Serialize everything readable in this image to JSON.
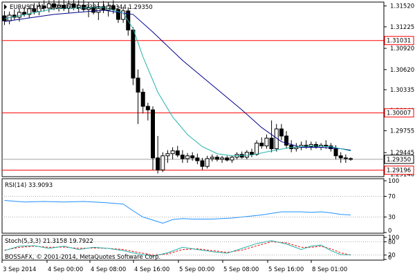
{
  "header": {
    "symbol": "EURUSD,H1",
    "ohlc": "1.29367 1.29381 1.29344 1.29350"
  },
  "colors": {
    "background": "#ffffff",
    "frame": "#000000",
    "candle": "#000000",
    "ma_fast": "#20b2aa",
    "ma_slow": "#00008b",
    "hline": "#ff0000",
    "price_line": "#a0a0a0",
    "rsi": "#1e90ff",
    "stoch_main": "#20b2aa",
    "stoch_signal": "#ff0000",
    "dotted_level": "#a9a9a9"
  },
  "chart_data": {
    "type": "candlestick",
    "symbol": "EURUSD",
    "timeframe": "H1",
    "ylim": [
      1.29105,
      1.31575
    ],
    "price_ticks": [
      "1.31520",
      "1.31225",
      "1.30920",
      "1.30620",
      "1.30335",
      "1.30040",
      "1.29755",
      "1.29445",
      "1.29140"
    ],
    "price_labels": [
      {
        "label": "1.31031",
        "value": 1.31031,
        "kind": "level",
        "color": "#ff0000"
      },
      {
        "label": "1.30007",
        "value": 1.30007,
        "kind": "level",
        "color": "#ff0000"
      },
      {
        "label": "1.29350",
        "value": 1.2935,
        "kind": "current",
        "color": "#ffffff"
      },
      {
        "label": "1.29196",
        "value": 1.29196,
        "kind": "level",
        "color": "#ff0000"
      }
    ],
    "x_labels": [
      "3 Sep 2014",
      "4 Sep 00:00",
      "4 Sep 08:00",
      "4 Sep 16:00",
      "5 Sep 00:00",
      "5 Sep 08:00",
      "5 Sep 16:00",
      "8 Sep 01:00"
    ],
    "candles": [
      [
        1.3138,
        1.3145,
        1.3125,
        1.3131
      ],
      [
        1.3131,
        1.3144,
        1.3126,
        1.3139
      ],
      [
        1.3139,
        1.3147,
        1.3132,
        1.3136
      ],
      [
        1.3136,
        1.3149,
        1.313,
        1.3143
      ],
      [
        1.3143,
        1.3151,
        1.3137,
        1.314
      ],
      [
        1.314,
        1.3153,
        1.3135,
        1.3148
      ],
      [
        1.3148,
        1.3156,
        1.314,
        1.3144
      ],
      [
        1.3144,
        1.3158,
        1.3139,
        1.3152
      ],
      [
        1.3152,
        1.316,
        1.3144,
        1.3149
      ],
      [
        1.3149,
        1.316,
        1.3143,
        1.3155
      ],
      [
        1.3155,
        1.3162,
        1.3146,
        1.315
      ],
      [
        1.315,
        1.316,
        1.3144,
        1.3153
      ],
      [
        1.3153,
        1.3163,
        1.3145,
        1.3149
      ],
      [
        1.3149,
        1.316,
        1.3142,
        1.3155
      ],
      [
        1.3155,
        1.3163,
        1.3146,
        1.315
      ],
      [
        1.315,
        1.316,
        1.3143,
        1.3153
      ],
      [
        1.3153,
        1.3161,
        1.3144,
        1.3147
      ],
      [
        1.3147,
        1.3158,
        1.3136,
        1.315
      ],
      [
        1.315,
        1.3158,
        1.314,
        1.3143
      ],
      [
        1.3143,
        1.3157,
        1.3132,
        1.3151
      ],
      [
        1.3151,
        1.3159,
        1.3142,
        1.3146
      ],
      [
        1.3146,
        1.3158,
        1.3137,
        1.3152
      ],
      [
        1.3152,
        1.316,
        1.3141,
        1.3147
      ],
      [
        1.3147,
        1.3152,
        1.3128,
        1.3133
      ],
      [
        1.3133,
        1.315,
        1.3128,
        1.3145
      ],
      [
        1.3145,
        1.315,
        1.311,
        1.3118
      ],
      [
        1.3118,
        1.3122,
        1.304,
        1.305
      ],
      [
        1.305,
        1.3062,
        1.2985,
        1.303
      ],
      [
        1.303,
        1.3035,
        1.3,
        1.301
      ],
      [
        1.301,
        1.3015,
        1.299,
        1.3005
      ],
      [
        1.3005,
        1.301,
        1.292,
        1.2937
      ],
      [
        1.2937,
        1.2968,
        1.2915,
        1.292
      ],
      [
        1.292,
        1.2945,
        1.2917,
        1.294
      ],
      [
        1.294,
        1.2948,
        1.293,
        1.2943
      ],
      [
        1.2943,
        1.2952,
        1.2935,
        1.2947
      ],
      [
        1.2947,
        1.2954,
        1.2938,
        1.2941
      ],
      [
        1.2941,
        1.2948,
        1.293,
        1.2936
      ],
      [
        1.2936,
        1.2944,
        1.293,
        1.294
      ],
      [
        1.294,
        1.2945,
        1.2933,
        1.2937
      ],
      [
        1.2937,
        1.2943,
        1.2928,
        1.2933
      ],
      [
        1.2933,
        1.2937,
        1.292,
        1.2925
      ],
      [
        1.2925,
        1.294,
        1.2922,
        1.2936
      ],
      [
        1.2936,
        1.2942,
        1.2932,
        1.2938
      ],
      [
        1.2938,
        1.2941,
        1.2932,
        1.2935
      ],
      [
        1.2935,
        1.294,
        1.293,
        1.2937
      ],
      [
        1.2937,
        1.294,
        1.2932,
        1.2934
      ],
      [
        1.2934,
        1.294,
        1.293,
        1.2938
      ],
      [
        1.2938,
        1.2945,
        1.2935,
        1.2942
      ],
      [
        1.2942,
        1.2946,
        1.2936,
        1.2938
      ],
      [
        1.2938,
        1.2948,
        1.2935,
        1.2945
      ],
      [
        1.2945,
        1.295,
        1.2938,
        1.2942
      ],
      [
        1.2942,
        1.2962,
        1.294,
        1.2958
      ],
      [
        1.2958,
        1.2966,
        1.295,
        1.2954
      ],
      [
        1.2954,
        1.297,
        1.295,
        1.2965
      ],
      [
        1.2965,
        1.299,
        1.2945,
        1.295
      ],
      [
        1.295,
        1.2985,
        1.2946,
        1.2978
      ],
      [
        1.2978,
        1.2985,
        1.2962,
        1.2968
      ],
      [
        1.2968,
        1.2975,
        1.295,
        1.2955
      ],
      [
        1.2955,
        1.2962,
        1.2945,
        1.295
      ],
      [
        1.295,
        1.2958,
        1.2946,
        1.2952
      ],
      [
        1.2952,
        1.296,
        1.2948,
        1.2955
      ],
      [
        1.2955,
        1.2962,
        1.295,
        1.2953
      ],
      [
        1.2953,
        1.296,
        1.2948,
        1.2956
      ],
      [
        1.2956,
        1.296,
        1.295,
        1.2952
      ],
      [
        1.2952,
        1.2958,
        1.2948,
        1.2955
      ],
      [
        1.2955,
        1.2962,
        1.295,
        1.2954
      ],
      [
        1.2954,
        1.2958,
        1.2946,
        1.295
      ],
      [
        1.295,
        1.2955,
        1.2935,
        1.294
      ],
      [
        1.294,
        1.2945,
        1.293,
        1.2937
      ],
      [
        1.2937,
        1.2942,
        1.293,
        1.2936
      ],
      [
        1.2936,
        1.2938,
        1.2933,
        1.2935
      ]
    ],
    "ma_fast": [
      [
        0,
        1.3134
      ],
      [
        10,
        1.3148
      ],
      [
        20,
        1.315
      ],
      [
        24,
        1.3142
      ],
      [
        26,
        1.312
      ],
      [
        28,
        1.308
      ],
      [
        31,
        1.303
      ],
      [
        34,
        1.2995
      ],
      [
        37,
        1.297
      ],
      [
        40,
        1.2953
      ],
      [
        43,
        1.2943
      ],
      [
        46,
        1.294
      ],
      [
        50,
        1.2941
      ],
      [
        54,
        1.2947
      ],
      [
        58,
        1.2952
      ],
      [
        62,
        1.2954
      ],
      [
        66,
        1.2953
      ],
      [
        70,
        1.2947
      ]
    ],
    "ma_slow": [
      [
        0,
        1.313
      ],
      [
        10,
        1.314
      ],
      [
        20,
        1.3146
      ],
      [
        26,
        1.314
      ],
      [
        30,
        1.3115
      ],
      [
        36,
        1.3075
      ],
      [
        42,
        1.304
      ],
      [
        48,
        1.3005
      ],
      [
        52,
        1.298
      ],
      [
        56,
        1.296
      ],
      [
        60,
        1.2952
      ],
      [
        64,
        1.2952
      ],
      [
        68,
        1.295
      ],
      [
        70,
        1.2948
      ]
    ],
    "horizontal_levels": [
      1.31031,
      1.30007,
      1.29196
    ],
    "current_price": 1.2935,
    "rsi": {
      "label": "RSI(14) 33.9093",
      "ylim": [
        0,
        100
      ],
      "ticks": [
        "100",
        "70",
        "30",
        "0"
      ],
      "levels": [
        70,
        30
      ],
      "values": [
        [
          0,
          62
        ],
        [
          4,
          59
        ],
        [
          8,
          60
        ],
        [
          12,
          59
        ],
        [
          16,
          60
        ],
        [
          20,
          58
        ],
        [
          24,
          55
        ],
        [
          26,
          42
        ],
        [
          28,
          30
        ],
        [
          30,
          24
        ],
        [
          32,
          18
        ],
        [
          34,
          25
        ],
        [
          36,
          27
        ],
        [
          38,
          26
        ],
        [
          40,
          26
        ],
        [
          42,
          26
        ],
        [
          44,
          27
        ],
        [
          46,
          28
        ],
        [
          48,
          30
        ],
        [
          50,
          32
        ],
        [
          52,
          34
        ],
        [
          54,
          37
        ],
        [
          56,
          40
        ],
        [
          58,
          40
        ],
        [
          60,
          40
        ],
        [
          62,
          39
        ],
        [
          64,
          40
        ],
        [
          66,
          38
        ],
        [
          68,
          35
        ],
        [
          70,
          34
        ]
      ]
    },
    "stoch": {
      "label": "Stoch(5,3,3) 21.3158 19.7922",
      "ylim": [
        0,
        100
      ],
      "ticks": [
        "100",
        "80",
        "20",
        "0"
      ],
      "levels": [
        80,
        20
      ],
      "main": [
        [
          0,
          40
        ],
        [
          3,
          60
        ],
        [
          6,
          62
        ],
        [
          9,
          50
        ],
        [
          12,
          60
        ],
        [
          15,
          45
        ],
        [
          18,
          55
        ],
        [
          21,
          50
        ],
        [
          24,
          40
        ],
        [
          27,
          25
        ],
        [
          30,
          15
        ],
        [
          33,
          30
        ],
        [
          36,
          55
        ],
        [
          39,
          45
        ],
        [
          42,
          35
        ],
        [
          45,
          28
        ],
        [
          48,
          50
        ],
        [
          51,
          72
        ],
        [
          54,
          85
        ],
        [
          57,
          70
        ],
        [
          60,
          45
        ],
        [
          62,
          60
        ],
        [
          64,
          65
        ],
        [
          66,
          40
        ],
        [
          68,
          22
        ],
        [
          70,
          21
        ]
      ],
      "signal": [
        [
          0,
          42
        ],
        [
          3,
          55
        ],
        [
          6,
          60
        ],
        [
          9,
          55
        ],
        [
          12,
          56
        ],
        [
          15,
          50
        ],
        [
          18,
          52
        ],
        [
          21,
          50
        ],
        [
          24,
          45
        ],
        [
          27,
          32
        ],
        [
          30,
          20
        ],
        [
          33,
          25
        ],
        [
          36,
          45
        ],
        [
          39,
          48
        ],
        [
          42,
          40
        ],
        [
          45,
          32
        ],
        [
          48,
          42
        ],
        [
          51,
          62
        ],
        [
          54,
          80
        ],
        [
          57,
          75
        ],
        [
          60,
          55
        ],
        [
          62,
          55
        ],
        [
          64,
          60
        ],
        [
          66,
          48
        ],
        [
          68,
          30
        ],
        [
          70,
          20
        ]
      ]
    }
  },
  "footer": {
    "copyright": "BOSSAFX, © 2001-2014, MetaQuotes Software Corp."
  }
}
